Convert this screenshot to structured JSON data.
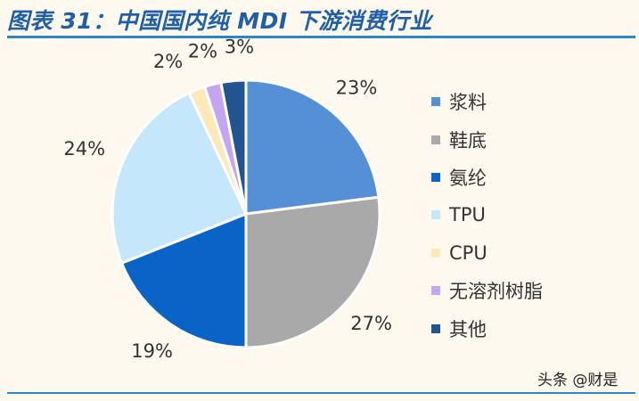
{
  "title": "图表 31：中国国内纯 MDI 下游消费行业",
  "watermark": "头条 @财是",
  "chart_data": {
    "type": "pie",
    "title": "图表 31：中国国内纯 MDI 下游消费行业",
    "legend_position": "right",
    "categories": [
      "浆料",
      "鞋底",
      "氨纶",
      "TPU",
      "CPU",
      "无溶剂树脂",
      "其他"
    ],
    "values": [
      23,
      27,
      19,
      24,
      2,
      2,
      3
    ],
    "labels": [
      "23%",
      "27%",
      "19%",
      "24%",
      "2%",
      "2%",
      "3%"
    ],
    "colors": [
      "#5590d6",
      "#a9a9a9",
      "#0a64c8",
      "#c4e7fb",
      "#fde9b8",
      "#c4a5f2",
      "#24548f"
    ]
  }
}
